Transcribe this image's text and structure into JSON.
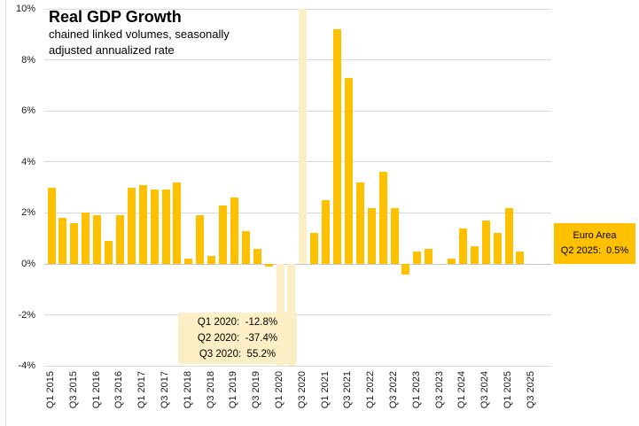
{
  "title": "Real GDP Growth",
  "subtitle_line1": "chained linked volumes, seasonally",
  "subtitle_line2": "adjusted annualized rate",
  "annotation_box": {
    "lines": [
      "Q1 2020:  -12.8%",
      "Q2 2020:  -37.4%",
      "Q3 2020:  55.2%"
    ]
  },
  "euro_area_label": {
    "line1": "Euro Area",
    "line2": "Q2 2025:  0.5%"
  },
  "colors": {
    "bar_gold": "#FFC000",
    "bar_pale": "#FCEEC5",
    "annotation_bg": "#FCEEC5",
    "euro_label_bg": "#FFC000",
    "gridline": "#D9D9D9"
  },
  "chart_data": {
    "type": "bar",
    "title": "Real GDP Growth",
    "subtitle": [
      "chained linked volumes, seasonally",
      "adjusted annualized rate"
    ],
    "ylabel": "",
    "xlabel": "",
    "unit": "%",
    "ylim": [
      -4,
      10
    ],
    "grid": true,
    "y_ticks": [
      10,
      8,
      6,
      4,
      2,
      0,
      -2,
      -4
    ],
    "y_tick_labels": [
      "10%",
      "8%",
      "6%",
      "4%",
      "2%",
      "0%",
      "-2%",
      "-4%"
    ],
    "x_tick_labels": [
      "Q1 2015",
      "Q3 2015",
      "Q1 2016",
      "Q3 2016",
      "Q1 2017",
      "Q3 2017",
      "Q1 2018",
      "Q3 2018",
      "Q1 2019",
      "Q3 2019",
      "Q1 2020",
      "Q3 2020",
      "Q1 2021",
      "Q3 2021",
      "Q1 2022",
      "Q3 2022",
      "Q1 2023",
      "Q3 2023",
      "Q1 2024",
      "Q3 2024",
      "Q1 2025",
      "Q3 2025"
    ],
    "categories": [
      "Q1 2015",
      "Q2 2015",
      "Q3 2015",
      "Q4 2015",
      "Q1 2016",
      "Q2 2016",
      "Q3 2016",
      "Q4 2016",
      "Q1 2017",
      "Q2 2017",
      "Q3 2017",
      "Q4 2017",
      "Q1 2018",
      "Q2 2018",
      "Q3 2018",
      "Q4 2018",
      "Q1 2019",
      "Q2 2019",
      "Q3 2019",
      "Q4 2019",
      "Q1 2020",
      "Q2 2020",
      "Q3 2020",
      "Q4 2020",
      "Q1 2021",
      "Q2 2021",
      "Q3 2021",
      "Q4 2021",
      "Q1 2022",
      "Q2 2022",
      "Q3 2022",
      "Q4 2022",
      "Q1 2023",
      "Q2 2023",
      "Q3 2023",
      "Q4 2023",
      "Q1 2024",
      "Q2 2024",
      "Q3 2024",
      "Q4 2024",
      "Q1 2025",
      "Q2 2025"
    ],
    "values": [
      3.0,
      1.8,
      1.6,
      2.0,
      1.9,
      0.9,
      1.9,
      3.0,
      3.1,
      2.9,
      2.9,
      3.2,
      0.2,
      1.9,
      0.3,
      2.3,
      2.6,
      1.3,
      0.6,
      -0.1,
      -12.8,
      -37.4,
      55.2,
      1.2,
      2.5,
      9.2,
      7.3,
      3.2,
      2.2,
      3.6,
      2.2,
      -0.4,
      0.5,
      0.6,
      0.0,
      0.2,
      1.4,
      0.7,
      1.7,
      1.2,
      2.2,
      0.5
    ],
    "pale_highlight_quarters": [
      "Q1 2020",
      "Q2 2020",
      "Q3 2020"
    ],
    "clipped_quarters_note": "Q1-Q3 2020 bars exceed axis range and are clipped at plot edges"
  }
}
